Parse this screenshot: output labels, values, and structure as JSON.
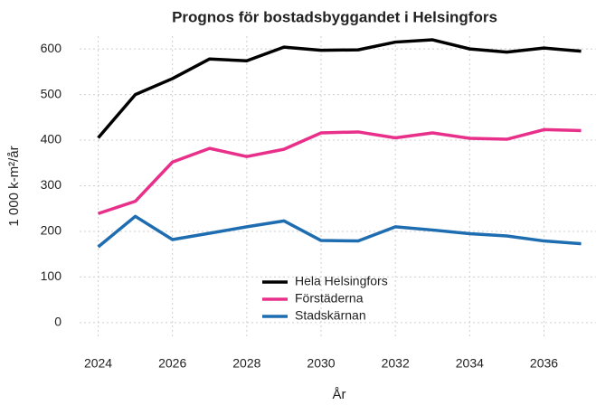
{
  "chart_data": {
    "type": "line",
    "title": "Prognos för bostadsbyggandet i Helsingfors",
    "x_label": "År",
    "y_label": "1 000 k-m²/år",
    "x": [
      2024,
      2025,
      2026,
      2027,
      2028,
      2029,
      2030,
      2031,
      2032,
      2033,
      2034,
      2035,
      2036,
      2037
    ],
    "series": [
      {
        "name": "Hela Helsingfors",
        "color": "#000000",
        "values": [
          405,
          500,
          535,
          578,
          574,
          604,
          597,
          598,
          615,
          620,
          600,
          593,
          602,
          595
        ]
      },
      {
        "name": "Förstäderna",
        "color": "#e8308a",
        "values": [
          239,
          266,
          352,
          382,
          364,
          380,
          416,
          418,
          405,
          416,
          404,
          402,
          423,
          421
        ]
      },
      {
        "name": "Stadskärnan",
        "color": "#1f6db1",
        "values": [
          166,
          233,
          182,
          196,
          210,
          223,
          180,
          179,
          210,
          203,
          195,
          190,
          179,
          173
        ]
      }
    ],
    "xlim": [
      2023.5,
      2037.4
    ],
    "xticks": [
      2024,
      2026,
      2028,
      2030,
      2032,
      2034,
      2036
    ],
    "ylim": [
      -30,
      628
    ],
    "yticks": [
      0,
      100,
      200,
      300,
      400,
      500,
      600
    ],
    "grid": true,
    "legend": "bottom"
  }
}
